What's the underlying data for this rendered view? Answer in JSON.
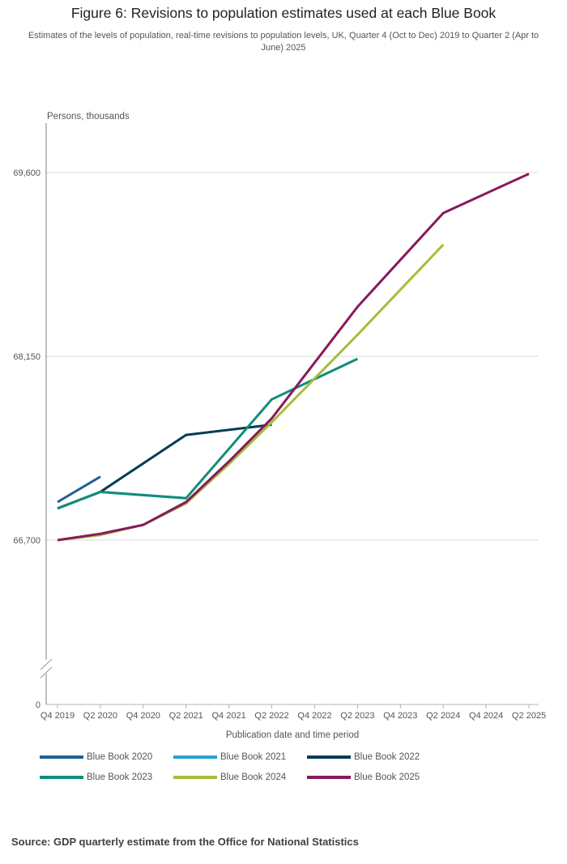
{
  "header": {
    "title": "Figure 6: Revisions to population estimates used at each Blue Book",
    "subtitle": "Estimates of the levels of population, real-time revisions to population levels, UK, Quarter 4 (Oct to Dec) 2019 to Quarter 2 (Apr to June) 2025"
  },
  "legend": {
    "items": [
      {
        "label": "Blue Book 2020",
        "color": "#206095"
      },
      {
        "label": "Blue Book 2021",
        "color": "#27A0CC"
      },
      {
        "label": "Blue Book 2022",
        "color": "#003C57"
      },
      {
        "label": "Blue Book 2023",
        "color": "#118C7B"
      },
      {
        "label": "Blue Book 2024",
        "color": "#A8BD3A"
      },
      {
        "label": "Blue Book 2025",
        "color": "#871A5B"
      }
    ]
  },
  "footer": {
    "source": "Source: GDP quarterly estimate from the Office for National Statistics"
  },
  "chart_data": {
    "type": "line",
    "title": "Figure 6: Revisions to population estimates used at each Blue Book",
    "ylabel": "Persons, thousands",
    "xlabel": "Publication date and time period",
    "x_tick_labels": [
      "Q4 2019",
      "Q2 2020",
      "Q4 2020",
      "Q2 2021",
      "Q4 2021",
      "Q2 2022",
      "Q4 2022",
      "Q2 2023",
      "Q4 2023",
      "Q2 2024",
      "Q4 2024",
      "Q2 2025"
    ],
    "y_tick_labels": [
      {
        "label": "69,600",
        "value": 69600
      },
      {
        "label": "68,150",
        "value": 68150
      },
      {
        "label": "66,700",
        "value": 66700
      }
    ],
    "y_zero_label": "0",
    "y_axis_break": true,
    "y_axis_range_shown": [
      66700,
      69600
    ],
    "grid": "horizontal-only",
    "legend_position": "bottom",
    "series": [
      {
        "name": "Blue Book 2020",
        "color": "#206095",
        "points": [
          [
            "Q4 2019",
            67000
          ],
          [
            "Q2 2020",
            67200
          ]
        ]
      },
      {
        "name": "Blue Book 2021",
        "color": "#27A0CC",
        "points": [
          [
            "Q4 2019",
            66950
          ],
          [
            "Q2 2020",
            67080
          ],
          [
            "Q2 2021",
            67030
          ]
        ]
      },
      {
        "name": "Blue Book 2022",
        "color": "#003C57",
        "points": [
          [
            "Q4 2019",
            66950
          ],
          [
            "Q2 2020",
            67080
          ],
          [
            "Q2 2021",
            67530
          ],
          [
            "Q2 2022",
            67610
          ]
        ]
      },
      {
        "name": "Blue Book 2023",
        "color": "#118C7B",
        "points": [
          [
            "Q4 2019",
            66950
          ],
          [
            "Q2 2020",
            67080
          ],
          [
            "Q2 2021",
            67030
          ],
          [
            "Q2 2022",
            67810
          ],
          [
            "Q2 2023",
            68130
          ]
        ]
      },
      {
        "name": "Blue Book 2024",
        "color": "#A8BD3A",
        "points": [
          [
            "Q4 2019",
            66700
          ],
          [
            "Q2 2020",
            66740
          ],
          [
            "Q4 2020",
            66820
          ],
          [
            "Q2 2021",
            66990
          ],
          [
            "Q4 2021",
            67300
          ],
          [
            "Q2 2022",
            67630
          ],
          [
            "Q2 2023",
            68320
          ],
          [
            "Q2 2024",
            69030
          ]
        ]
      },
      {
        "name": "Blue Book 2025",
        "color": "#871A5B",
        "points": [
          [
            "Q4 2019",
            66700
          ],
          [
            "Q2 2020",
            66750
          ],
          [
            "Q4 2020",
            66820
          ],
          [
            "Q2 2021",
            67000
          ],
          [
            "Q4 2021",
            67320
          ],
          [
            "Q2 2022",
            67660
          ],
          [
            "Q2 2023",
            68540
          ],
          [
            "Q2 2024",
            69280
          ],
          [
            "Q2 2025",
            69590
          ]
        ]
      }
    ]
  }
}
